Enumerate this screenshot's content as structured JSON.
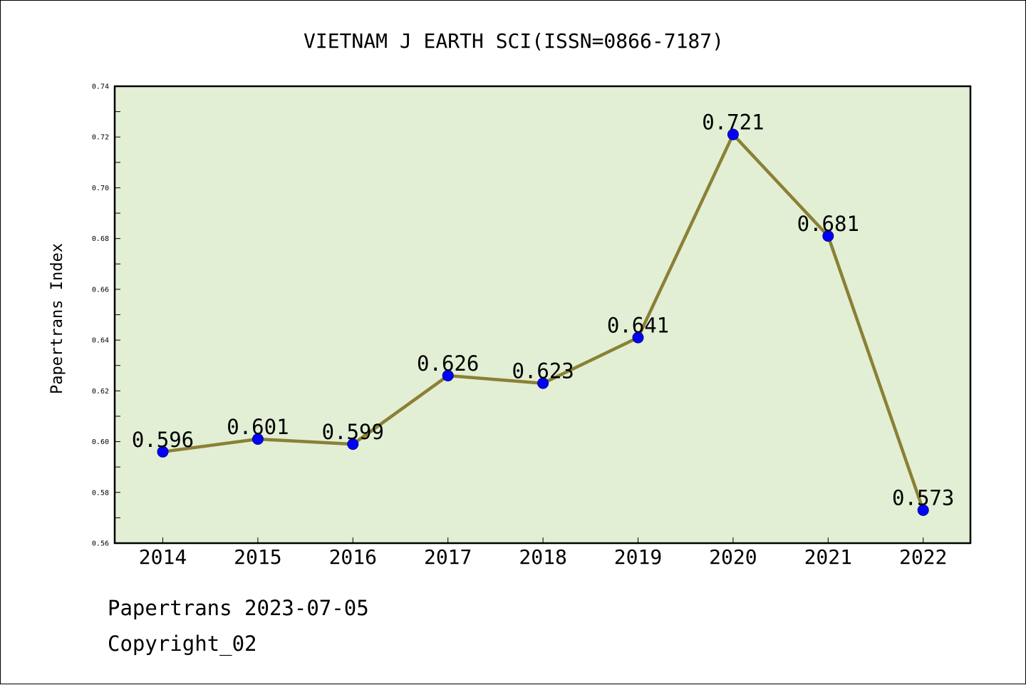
{
  "footer": {
    "line1": "Papertrans 2023-07-05",
    "line2": "Copyright_02"
  },
  "chart_data": {
    "type": "line",
    "title": "VIETNAM J EARTH SCI(ISSN=0866-7187)",
    "xlabel": "",
    "ylabel": "Papertrans Index",
    "categories": [
      "2014",
      "2015",
      "2016",
      "2017",
      "2018",
      "2019",
      "2020",
      "2021",
      "2022"
    ],
    "series": [
      {
        "values": [
          0.596,
          0.601,
          0.599,
          0.626,
          0.623,
          0.641,
          0.721,
          0.681,
          0.573
        ],
        "data_labels": [
          "0.596",
          "0.601",
          "0.599",
          "0.626",
          "0.623",
          "0.641",
          "0.721",
          "0.681",
          "0.573"
        ],
        "line_color": "#8b8035",
        "marker_color": "#0000ff"
      }
    ],
    "ylim": [
      0.56,
      0.74
    ],
    "yticks": [
      "0.56",
      "0.58",
      "0.60",
      "0.62",
      "0.64",
      "0.66",
      "0.68",
      "0.70",
      "0.72",
      "0.74"
    ],
    "grid": false,
    "legend": "none",
    "plot_background": "#e2efd5"
  }
}
